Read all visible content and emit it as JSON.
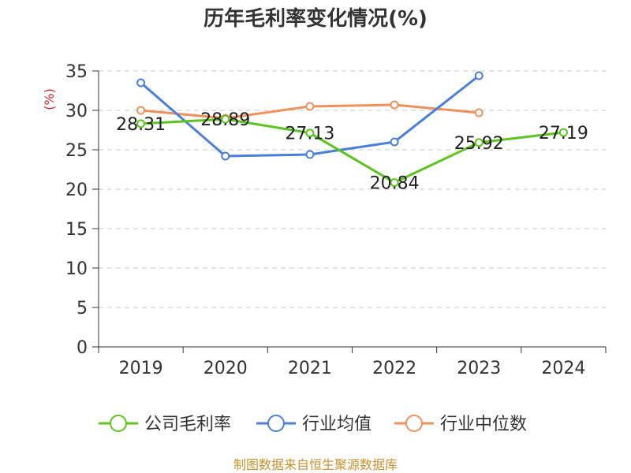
{
  "chart_data": {
    "type": "line",
    "title": "历年毛利率变化情况(%)",
    "ylabel": "(%)",
    "xlabel": "",
    "categories": [
      "2019",
      "2020",
      "2021",
      "2022",
      "2023",
      "2024"
    ],
    "ylim": [
      0,
      35
    ],
    "yticks": [
      0,
      5,
      10,
      15,
      20,
      25,
      30,
      35
    ],
    "grid": "horizontal-dashed",
    "legend_position": "bottom",
    "series": [
      {
        "name": "公司毛利率",
        "color": "#5cc41f",
        "values": [
          28.31,
          28.89,
          27.13,
          20.84,
          25.92,
          27.19
        ],
        "show_labels": true
      },
      {
        "name": "行业均值",
        "color": "#4a7fd9",
        "values": [
          33.5,
          24.2,
          24.4,
          26.0,
          34.4,
          null
        ],
        "show_labels": false
      },
      {
        "name": "行业中位数",
        "color": "#f0905b",
        "values": [
          30.0,
          29.0,
          30.5,
          30.7,
          29.7,
          null
        ],
        "show_labels": false
      }
    ]
  },
  "source_text": "制图数据来自恒生聚源数据库"
}
